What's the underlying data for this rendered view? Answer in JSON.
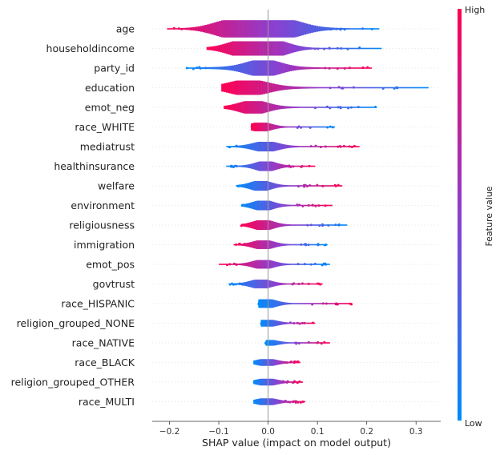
{
  "chart_data": {
    "type": "scatter",
    "subtype": "shap-violin-summary",
    "xlabel": "SHAP value (impact on model output)",
    "xlim": [
      -0.235,
      0.35
    ],
    "x_ticks": [
      -0.2,
      -0.1,
      0.0,
      0.1,
      0.2,
      0.3
    ],
    "x_tick_labels": [
      "−0.2",
      "−0.1",
      "0.0",
      "0.1",
      "0.2",
      "0.3"
    ],
    "colorbar": {
      "title": "Feature value",
      "high_label": "High",
      "low_label": "Low",
      "low_color": "#008bfb",
      "high_color": "#ff0052"
    },
    "features": [
      {
        "name": "age",
        "min": -0.205,
        "max": 0.225,
        "center": 0.0,
        "width": 0.9,
        "peaks": [
          -0.07,
          0.03
        ],
        "low_side": "right"
      },
      {
        "name": "householdincome",
        "min": -0.125,
        "max": 0.23,
        "center": -0.04,
        "width": 0.75,
        "peaks": [
          -0.05,
          0.01
        ],
        "low_side": "right"
      },
      {
        "name": "party_id",
        "min": -0.165,
        "max": 0.21,
        "center": -0.02,
        "width": 0.8,
        "peaks": [
          -0.01
        ],
        "low_side": "left"
      },
      {
        "name": "education",
        "min": -0.095,
        "max": 0.325,
        "center": -0.04,
        "width": 0.75,
        "peaks": [
          -0.04
        ],
        "low_side": "right"
      },
      {
        "name": "emot_neg",
        "min": -0.09,
        "max": 0.22,
        "center": -0.03,
        "width": 0.65,
        "peaks": [
          -0.03
        ],
        "low_side": "right"
      },
      {
        "name": "race_WHITE",
        "min": -0.035,
        "max": 0.135,
        "center": -0.015,
        "width": 0.45,
        "peaks": [
          -0.015
        ],
        "low_side": "right"
      },
      {
        "name": "mediatrust",
        "min": -0.085,
        "max": 0.185,
        "center": -0.005,
        "width": 0.5,
        "peaks": [
          -0.005
        ],
        "low_side": "left"
      },
      {
        "name": "healthinsurance",
        "min": -0.085,
        "max": 0.095,
        "center": -0.005,
        "width": 0.5,
        "peaks": [
          -0.005
        ],
        "low_side": "left"
      },
      {
        "name": "welfare",
        "min": -0.065,
        "max": 0.15,
        "center": -0.015,
        "width": 0.5,
        "peaks": [
          -0.015
        ],
        "low_side": "left"
      },
      {
        "name": "environment",
        "min": -0.055,
        "max": 0.13,
        "center": -0.01,
        "width": 0.5,
        "peaks": [
          -0.01
        ],
        "low_side": "left"
      },
      {
        "name": "religiousness",
        "min": -0.055,
        "max": 0.16,
        "center": -0.01,
        "width": 0.5,
        "peaks": [
          -0.01
        ],
        "low_side": "right"
      },
      {
        "name": "immigration",
        "min": -0.07,
        "max": 0.12,
        "center": -0.01,
        "width": 0.45,
        "peaks": [
          -0.01
        ],
        "low_side": "right"
      },
      {
        "name": "emot_pos",
        "min": -0.1,
        "max": 0.125,
        "center": -0.01,
        "width": 0.45,
        "peaks": [
          -0.01
        ],
        "low_side": "right"
      },
      {
        "name": "govtrust",
        "min": -0.08,
        "max": 0.11,
        "center": -0.015,
        "width": 0.45,
        "peaks": [
          -0.015
        ],
        "low_side": "left"
      },
      {
        "name": "race_HISPANIC",
        "min": -0.02,
        "max": 0.17,
        "center": -0.005,
        "width": 0.45,
        "peaks": [
          -0.005
        ],
        "low_side": "left"
      },
      {
        "name": "religion_grouped_NONE",
        "min": -0.015,
        "max": 0.095,
        "center": -0.003,
        "width": 0.35,
        "peaks": [
          -0.003
        ],
        "low_side": "left"
      },
      {
        "name": "race_NATIVE",
        "min": -0.005,
        "max": 0.125,
        "center": -0.002,
        "width": 0.3,
        "peaks": [
          -0.002
        ],
        "low_side": "left"
      },
      {
        "name": "race_BLACK",
        "min": -0.03,
        "max": 0.065,
        "center": -0.003,
        "width": 0.35,
        "peaks": [
          -0.003
        ],
        "low_side": "left"
      },
      {
        "name": "religion_grouped_OTHER",
        "min": -0.03,
        "max": 0.07,
        "center": -0.003,
        "width": 0.35,
        "peaks": [
          -0.003
        ],
        "low_side": "left"
      },
      {
        "name": "race_MULTI",
        "min": -0.03,
        "max": 0.075,
        "center": -0.003,
        "width": 0.35,
        "peaks": [
          -0.003
        ],
        "low_side": "left"
      }
    ]
  }
}
